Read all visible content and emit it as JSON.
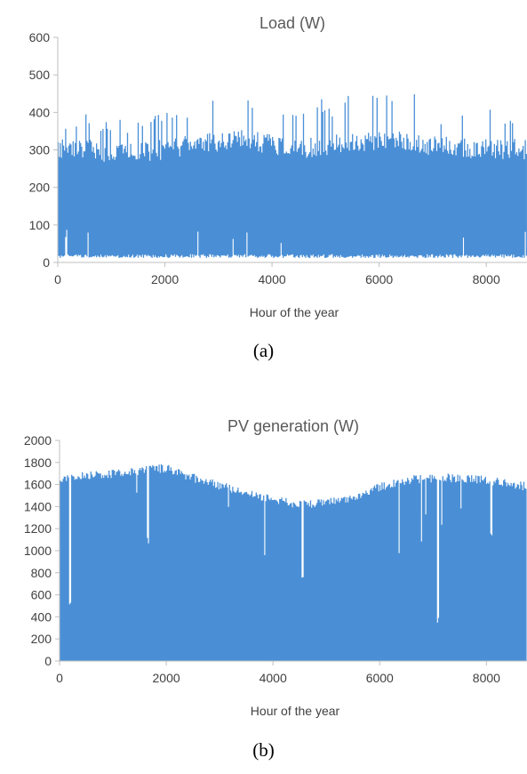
{
  "chart_data": [
    {
      "id": "a",
      "type": "area",
      "title": "Load (W)",
      "xlabel": "Hour of the year",
      "ylabel": "",
      "xlim": [
        0,
        8760
      ],
      "ylim": [
        0,
        600
      ],
      "x_ticks": [
        0,
        2000,
        4000,
        6000,
        8000
      ],
      "y_ticks": [
        0,
        100,
        200,
        300,
        400,
        500,
        600
      ],
      "grid": false,
      "color": "#4a8fd6",
      "series": [
        {
          "x_hours": [
            0,
            500,
            1000,
            1500,
            2000,
            2500,
            3000,
            3500,
            4000,
            4500,
            5000,
            5500,
            6000,
            6500,
            7000,
            7500,
            8000,
            8500,
            8760
          ],
          "upper_envelope": [
            340,
            410,
            390,
            380,
            400,
            430,
            470,
            470,
            430,
            420,
            440,
            450,
            450,
            470,
            420,
            420,
            410,
            400,
            360
          ],
          "typical_level": [
            300,
            300,
            290,
            290,
            300,
            310,
            320,
            330,
            310,
            300,
            310,
            320,
            320,
            320,
            310,
            300,
            300,
            300,
            300
          ],
          "baseline": [
            20,
            20,
            20,
            20,
            20,
            20,
            20,
            20,
            20,
            20,
            20,
            20,
            20,
            20,
            20,
            20,
            20,
            20,
            20
          ]
        }
      ],
      "caption": "(a)"
    },
    {
      "id": "b",
      "type": "area",
      "title": "PV generation (W)",
      "xlabel": "Hour of the year",
      "ylabel": "",
      "xlim": [
        0,
        8760
      ],
      "ylim": [
        0,
        2000
      ],
      "x_ticks": [
        0,
        2000,
        4000,
        6000,
        8000
      ],
      "y_ticks": [
        0,
        200,
        400,
        600,
        800,
        1000,
        1200,
        1400,
        1600,
        1800,
        2000
      ],
      "grid": false,
      "color": "#4a8fd6",
      "series": [
        {
          "x_hours": [
            0,
            500,
            1000,
            1500,
            2000,
            2500,
            3000,
            3500,
            4000,
            4500,
            5000,
            5500,
            6000,
            6500,
            7000,
            7500,
            8000,
            8500,
            8760
          ],
          "upper_envelope": [
            1680,
            1720,
            1740,
            1760,
            1790,
            1700,
            1630,
            1560,
            1500,
            1460,
            1480,
            1520,
            1620,
            1680,
            1700,
            1700,
            1680,
            1640,
            1620
          ],
          "notable_dips": [
            {
              "hour": 200,
              "value": 480
            },
            {
              "hour": 1650,
              "value": 1060
            },
            {
              "hour": 4550,
              "value": 720
            },
            {
              "hour": 7100,
              "value": 330
            },
            {
              "hour": 8100,
              "value": 1100
            }
          ]
        }
      ],
      "caption": "(b)"
    }
  ]
}
